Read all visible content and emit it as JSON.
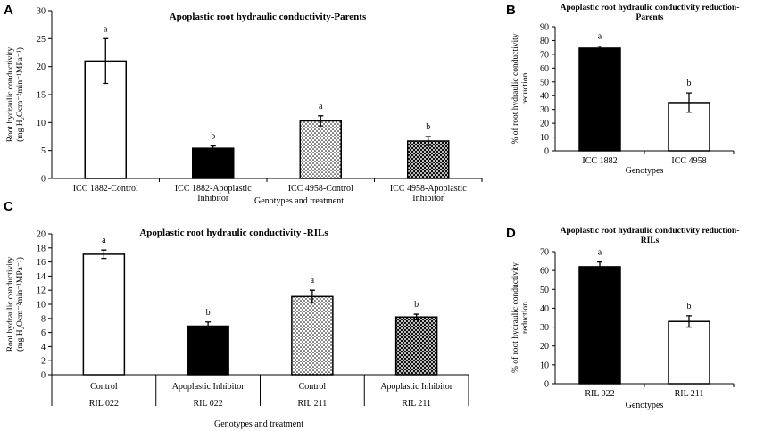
{
  "chart_data": [
    {
      "panel": "A",
      "type": "bar",
      "title": "Apoplastic root hydraulic conductivity-Parents",
      "xlabel": "Genotypes and treatment",
      "ylabel": [
        "Root hydraulic conductivity",
        "(mg H₂Ocm⁻²min⁻¹MPa⁻¹)"
      ],
      "ylim": [
        0,
        30
      ],
      "ystep": 5,
      "categories": [
        [
          "ICC 1882-Control"
        ],
        [
          "ICC 1882-Apoplastic",
          "Inhibitor"
        ],
        [
          "ICC 4958-Control"
        ],
        [
          "ICC 4958-Apoplastic",
          "Inhibitor"
        ]
      ],
      "values": [
        21,
        5.4,
        10.3,
        6.7
      ],
      "errors": [
        4,
        0.4,
        0.9,
        0.8
      ],
      "letters": [
        "a",
        "b",
        "a",
        "b"
      ],
      "fills": [
        "white",
        "black",
        "dots",
        "cross"
      ]
    },
    {
      "panel": "B",
      "type": "bar",
      "title": [
        "Apoplastic root hydraulic conductivity reduction-",
        "Parents"
      ],
      "xlabel": "Genotypes",
      "ylabel": [
        "% of root hydraulic conductivity",
        "reduction"
      ],
      "ylim": [
        0,
        90
      ],
      "ystep": 10,
      "categories": [
        [
          "ICC 1882"
        ],
        [
          "ICC 4958"
        ]
      ],
      "values": [
        74.5,
        35
      ],
      "errors": [
        1.5,
        7
      ],
      "letters": [
        "a",
        "b"
      ],
      "fills": [
        "black",
        "white"
      ]
    },
    {
      "panel": "C",
      "type": "bar",
      "title": "Apoplastic root hydraulic conductivity -RILs",
      "xlabel": "Genotypes and treatment",
      "ylabel": [
        "Root hydraulic conductivity",
        "(mg H₂Ocm⁻²min⁻¹MPa⁻¹)"
      ],
      "ylim": [
        0,
        20
      ],
      "ystep": 2,
      "categories": [
        [
          "Control",
          "RIL 022"
        ],
        [
          "Apoplastic Inhibitor",
          "RIL 022"
        ],
        [
          "Control",
          "RIL 211"
        ],
        [
          "Apoplastic Inhibitor",
          "RIL 211"
        ]
      ],
      "values": [
        17.1,
        6.9,
        11.1,
        8.2
      ],
      "errors": [
        0.6,
        0.6,
        0.9,
        0.4
      ],
      "letters": [
        "a",
        "b",
        "a",
        "b"
      ],
      "fills": [
        "white",
        "black",
        "dots",
        "cross"
      ]
    },
    {
      "panel": "D",
      "type": "bar",
      "title": [
        "Apoplastic root hydraulic conductivity reduction-",
        "RILs"
      ],
      "xlabel": "Genotypes",
      "ylabel": [
        "% of root hydraulic conductivity",
        "reduction"
      ],
      "ylim": [
        0,
        70
      ],
      "ystep": 10,
      "categories": [
        [
          "RIL 022"
        ],
        [
          "RIL 211"
        ]
      ],
      "values": [
        62,
        33
      ],
      "errors": [
        2.5,
        3
      ],
      "letters": [
        "a",
        "b"
      ],
      "fills": [
        "black",
        "white"
      ]
    }
  ]
}
